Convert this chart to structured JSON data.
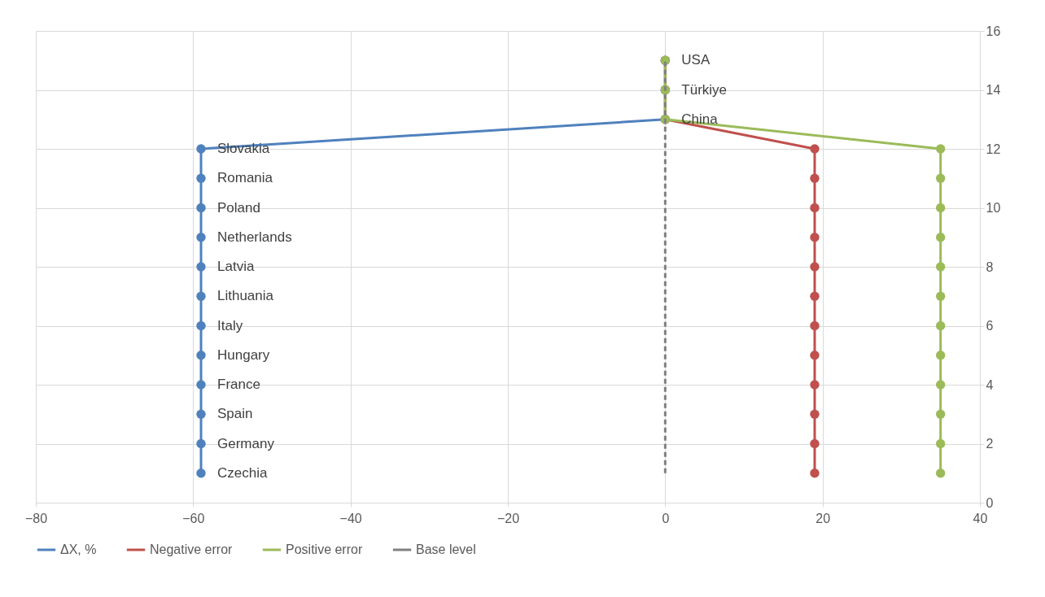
{
  "chart_data": {
    "type": "line",
    "xlim": [
      -80,
      40
    ],
    "xticks": [
      -80,
      -60,
      -40,
      -20,
      0,
      20,
      40
    ],
    "ylim": [
      0,
      16
    ],
    "yticks": [
      0,
      2,
      4,
      6,
      8,
      10,
      12,
      14,
      16
    ],
    "grid": true,
    "legend": "bottom",
    "marker": "circle",
    "series": [
      {
        "name": "ΔX, %",
        "color": "#4f81bd",
        "x": [
          -59,
          -59,
          -59,
          -59,
          -59,
          -59,
          -59,
          -59,
          -59,
          -59,
          -59,
          -59,
          0,
          0,
          0
        ],
        "values": [
          1,
          2,
          3,
          4,
          5,
          6,
          7,
          8,
          9,
          10,
          11,
          12,
          13,
          14,
          15
        ],
        "value_labels": [
          "Czechia",
          "Germany",
          "Spain",
          "France",
          "Hungary",
          "Italy",
          "Lithuania",
          "Latvia",
          "Netherlands",
          "Poland",
          "Romania",
          "Slovakia",
          "China",
          "Türkiye",
          "USA"
        ]
      },
      {
        "name": "Negative error",
        "color": "#c0504d",
        "x": [
          19,
          19,
          19,
          19,
          19,
          19,
          19,
          19,
          19,
          19,
          19,
          19,
          0,
          0,
          0
        ],
        "values": [
          1,
          2,
          3,
          4,
          5,
          6,
          7,
          8,
          9,
          10,
          11,
          12,
          13,
          14,
          15
        ]
      },
      {
        "name": "Positive error",
        "color": "#9bbb59",
        "x": [
          35,
          35,
          35,
          35,
          35,
          35,
          35,
          35,
          35,
          35,
          35,
          35,
          0,
          0,
          0
        ],
        "values": [
          1,
          2,
          3,
          4,
          5,
          6,
          7,
          8,
          9,
          10,
          11,
          12,
          13,
          14,
          15
        ]
      },
      {
        "name": "Base level",
        "color": "#808080",
        "marker": "none",
        "line_style": "dashed",
        "x": [
          0,
          0
        ],
        "values": [
          1,
          15
        ]
      }
    ]
  }
}
